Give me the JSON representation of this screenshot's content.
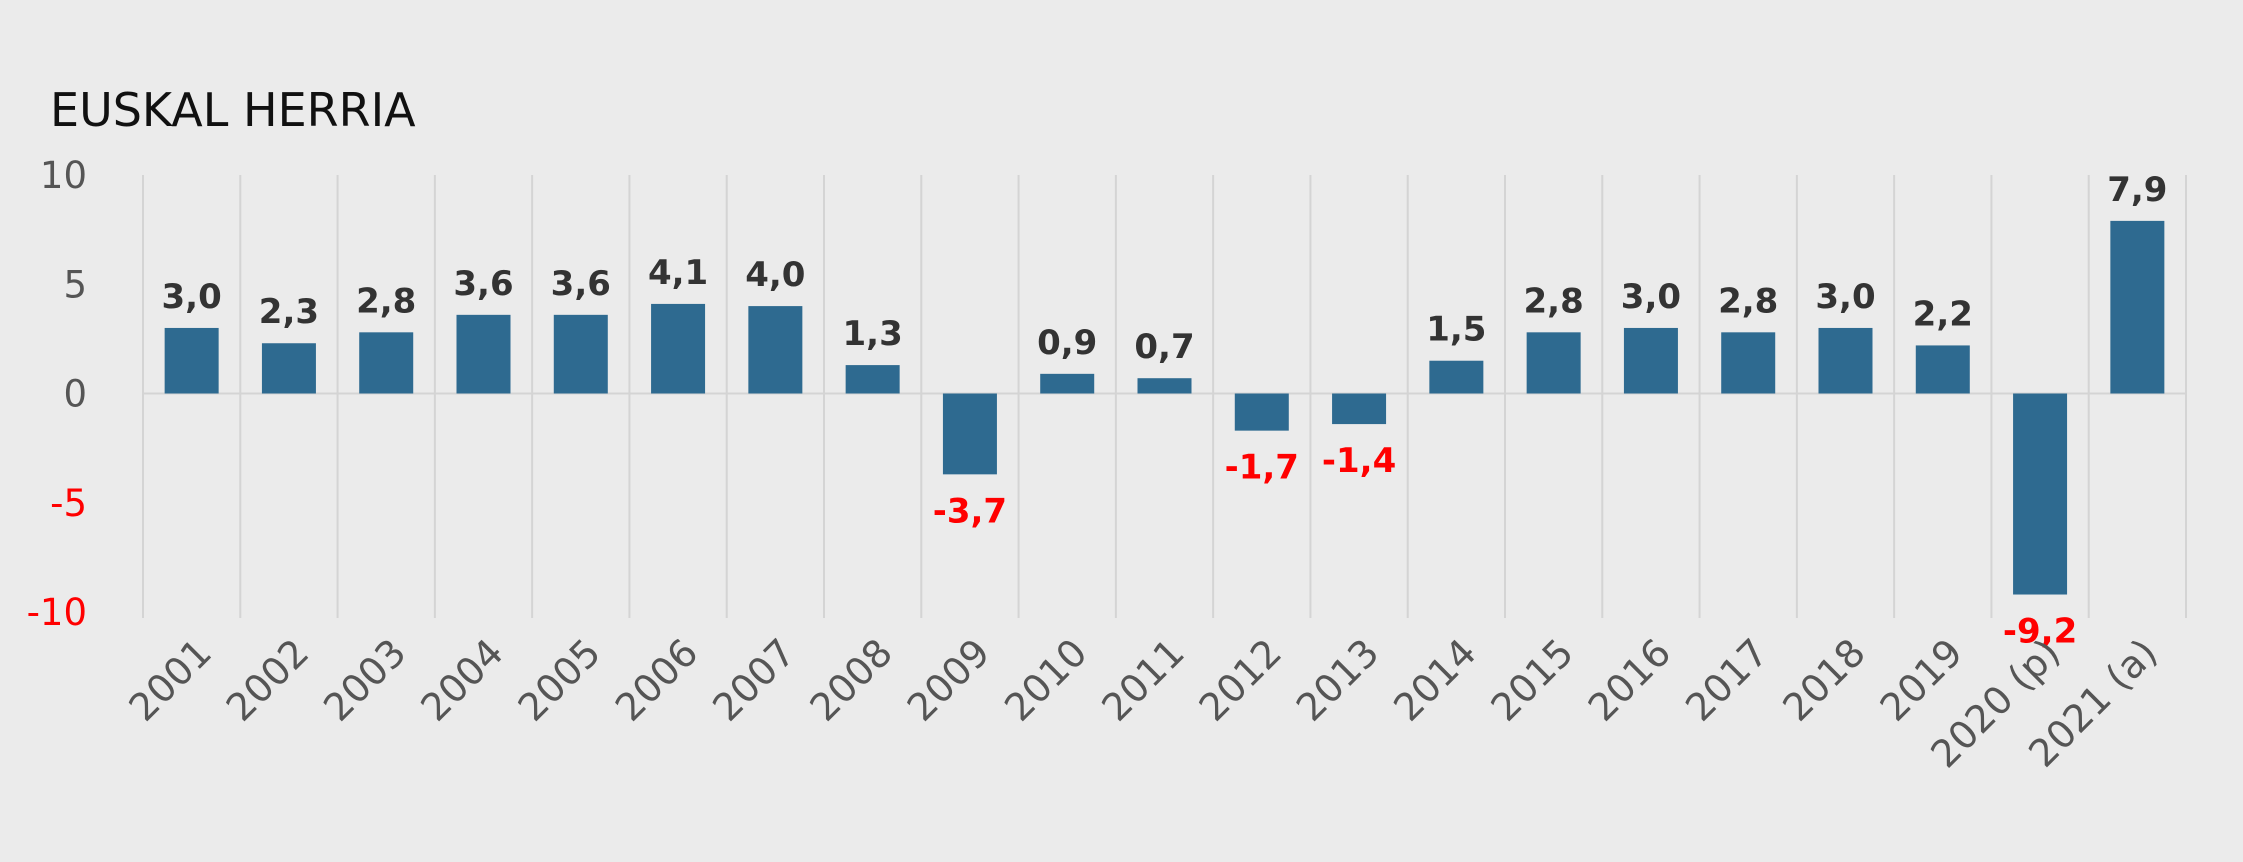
{
  "chart_data": {
    "type": "bar",
    "title": "EUSKAL HERRIA",
    "xlabel": "",
    "ylabel": "",
    "ylim": [
      -10,
      10
    ],
    "yticks": [
      "10",
      "5",
      "0",
      "-5",
      "-10"
    ],
    "grid": "vertical",
    "categories": [
      "2001",
      "2002",
      "2003",
      "2004",
      "2005",
      "2006",
      "2007",
      "2008",
      "2009",
      "2010",
      "2011",
      "2012",
      "2013",
      "2014",
      "2015",
      "2016",
      "2017",
      "2018",
      "2019",
      "2020 (p)",
      "2021 (a)"
    ],
    "values": [
      3.0,
      2.3,
      2.8,
      3.6,
      3.6,
      4.1,
      4.0,
      1.3,
      -3.7,
      0.9,
      0.7,
      -1.7,
      -1.4,
      1.5,
      2.8,
      3.0,
      2.8,
      3.0,
      2.2,
      -9.2,
      7.9
    ],
    "labels": [
      "3,0",
      "2,3",
      "2,8",
      "3,6",
      "3,6",
      "4,1",
      "4,0",
      "1,3",
      "-3,7",
      "0,9",
      "0,7",
      "-1,7",
      "-1,4",
      "1,5",
      "2,8",
      "3,0",
      "2,8",
      "3,0",
      "2,2",
      "-9,2",
      "7,9"
    ],
    "colors": {
      "bar": "#2e6a90",
      "positive_text": "#333333",
      "negative_text": "#ff0000",
      "positive_tick": "#555555",
      "negative_tick": "#ff0000",
      "grid": "#d4d4d4"
    }
  }
}
